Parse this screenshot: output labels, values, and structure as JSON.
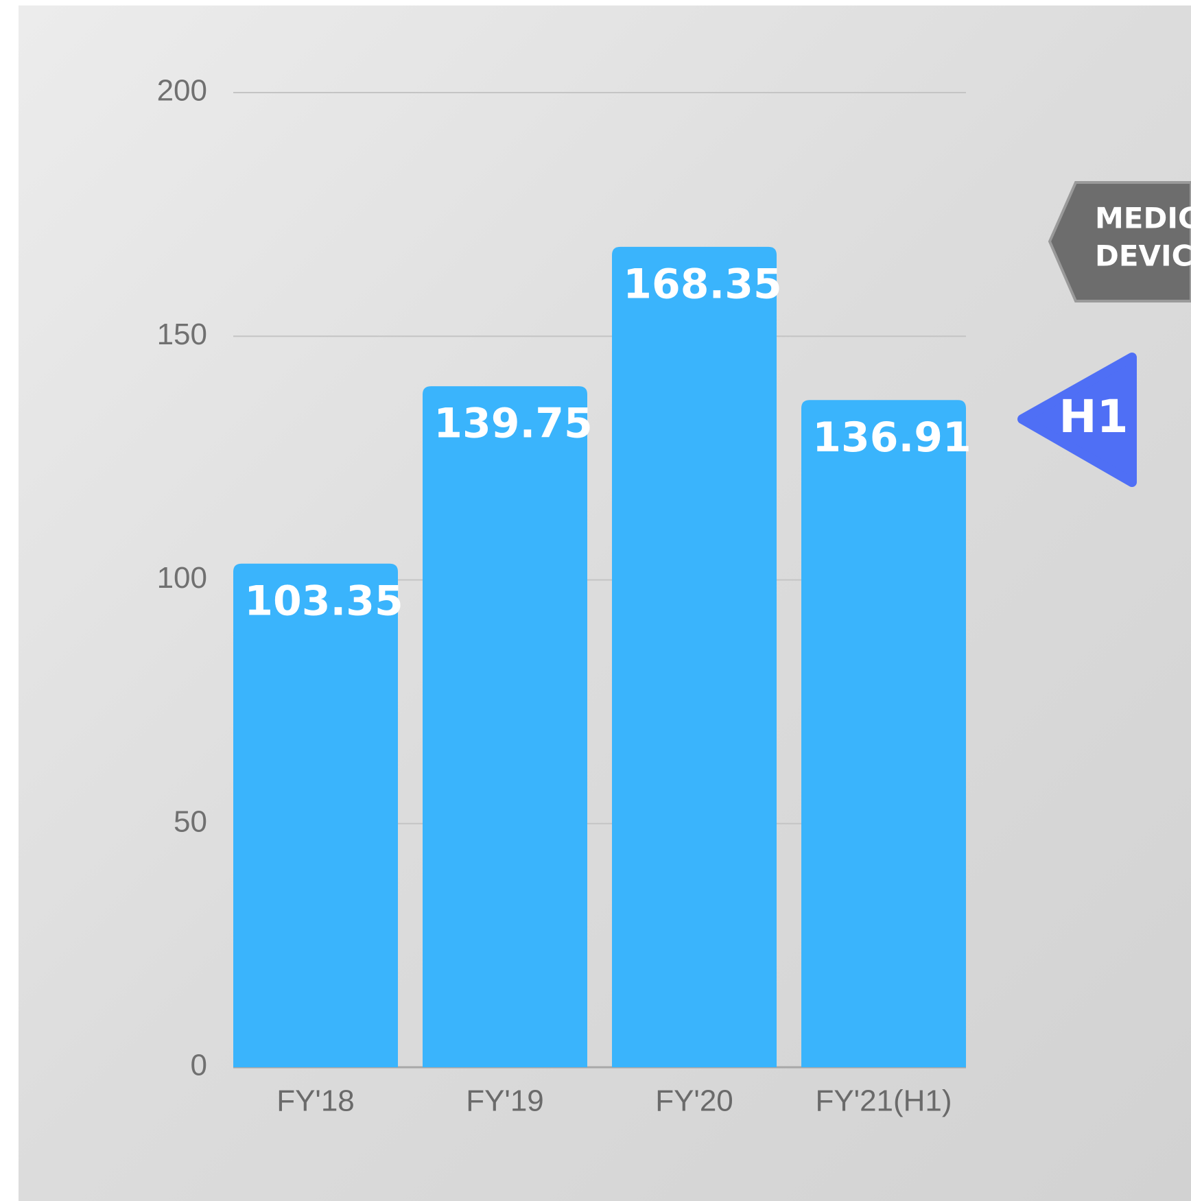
{
  "chart_data": {
    "type": "bar",
    "categories": [
      "FY'18",
      "FY'19",
      "FY'20",
      "FY'21(H1)"
    ],
    "values": [
      103.35,
      139.75,
      168.35,
      136.91
    ],
    "color": "#3ab4fc",
    "ylim": [
      0,
      200
    ],
    "yticks": [
      0,
      50,
      100,
      150,
      200
    ],
    "grid": true,
    "annotations": [
      "MEDIC",
      "DEVIC",
      "H1"
    ]
  }
}
